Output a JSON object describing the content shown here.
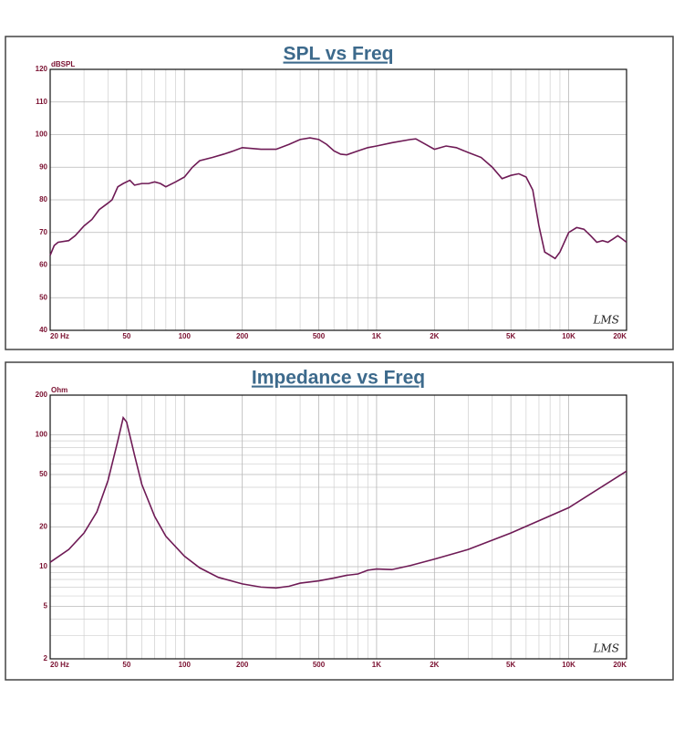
{
  "chart_data": [
    {
      "type": "line",
      "title": "SPL vs Freq",
      "y_label": "dBSPL",
      "watermark": "LMS",
      "xscale": "log",
      "yscale": "linear",
      "grid": true,
      "xlim": [
        20,
        20000
      ],
      "ylim": [
        40,
        120
      ],
      "xticks": [
        {
          "value": 20,
          "label": "20  Hz"
        },
        50,
        100,
        200,
        500,
        {
          "value": 1000,
          "label": "1K"
        },
        {
          "value": 2000,
          "label": "2K"
        },
        {
          "value": 5000,
          "label": "5K"
        },
        {
          "value": 10000,
          "label": "10K"
        },
        {
          "value": 20000,
          "label": "20K"
        }
      ],
      "xminorticks": [
        30,
        40,
        60,
        70,
        80,
        90,
        300,
        400,
        600,
        700,
        800,
        900,
        3000,
        4000,
        6000,
        7000,
        8000,
        9000
      ],
      "yticks": [
        40,
        50,
        60,
        70,
        80,
        90,
        100,
        110,
        120
      ],
      "x": [
        20,
        21,
        22,
        25,
        27,
        30,
        33,
        36,
        40,
        42,
        45,
        48,
        52,
        55,
        60,
        65,
        70,
        75,
        80,
        90,
        100,
        110,
        120,
        140,
        160,
        180,
        200,
        250,
        300,
        350,
        400,
        450,
        500,
        550,
        600,
        650,
        700,
        800,
        900,
        1000,
        1200,
        1500,
        1600,
        1800,
        2000,
        2300,
        2600,
        3000,
        3500,
        4000,
        4500,
        5000,
        5500,
        6000,
        6500,
        7000,
        7500,
        8000,
        8500,
        9000,
        10000,
        11000,
        12000,
        13000,
        14000,
        15000,
        16000,
        17000,
        18000,
        19000,
        20000
      ],
      "series": [
        {
          "color": "#6e1a55",
          "values": [
            63,
            66,
            67,
            67.5,
            69,
            72,
            74,
            77,
            79,
            80,
            84,
            85,
            86,
            84.5,
            85,
            85,
            85.5,
            85,
            84,
            85.5,
            87,
            90,
            92,
            93,
            94,
            95,
            96,
            95.5,
            95.5,
            97,
            98.5,
            99,
            98.5,
            97,
            95,
            94,
            93.8,
            95,
            96,
            96.5,
            97.5,
            98.5,
            98.7,
            97,
            95.5,
            96.5,
            96,
            94.5,
            93,
            90,
            86.5,
            87.5,
            88,
            87,
            83,
            72,
            64,
            63,
            62,
            64,
            70,
            71.5,
            71,
            69,
            67,
            67.5,
            67,
            68,
            69,
            68,
            67
          ]
        }
      ]
    },
    {
      "type": "line",
      "title": "Impedance vs Freq",
      "y_label": "Ohm",
      "watermark": "LMS",
      "xscale": "log",
      "yscale": "log",
      "grid": true,
      "xlim": [
        20,
        20000
      ],
      "ylim": [
        2,
        200
      ],
      "xticks": [
        {
          "value": 20,
          "label": "20  Hz"
        },
        50,
        100,
        200,
        500,
        {
          "value": 1000,
          "label": "1K"
        },
        {
          "value": 2000,
          "label": "2K"
        },
        {
          "value": 5000,
          "label": "5K"
        },
        {
          "value": 10000,
          "label": "10K"
        },
        {
          "value": 20000,
          "label": "20K"
        }
      ],
      "xminorticks": [
        30,
        40,
        60,
        70,
        80,
        90,
        300,
        400,
        600,
        700,
        800,
        900,
        3000,
        4000,
        6000,
        7000,
        8000,
        9000
      ],
      "yticks": [
        2,
        5,
        10,
        20,
        50,
        100,
        200
      ],
      "yminorticks": [
        3,
        4,
        6,
        7,
        8,
        9,
        30,
        40,
        60,
        70,
        80,
        90
      ],
      "x": [
        20,
        25,
        30,
        35,
        40,
        45,
        48,
        50,
        55,
        60,
        70,
        80,
        100,
        120,
        150,
        200,
        250,
        300,
        350,
        400,
        500,
        600,
        700,
        800,
        900,
        1000,
        1200,
        1500,
        2000,
        3000,
        5000,
        10000,
        20000
      ],
      "series": [
        {
          "color": "#6e1a55",
          "values": [
            10.8,
            13.5,
            18,
            26,
            45,
            90,
            135,
            125,
            70,
            42,
            24,
            17,
            12,
            9.8,
            8.3,
            7.4,
            7.0,
            6.9,
            7.1,
            7.5,
            7.8,
            8.2,
            8.6,
            8.8,
            9.4,
            9.6,
            9.5,
            10.2,
            11.4,
            13.5,
            18,
            28,
            53
          ]
        }
      ]
    }
  ]
}
